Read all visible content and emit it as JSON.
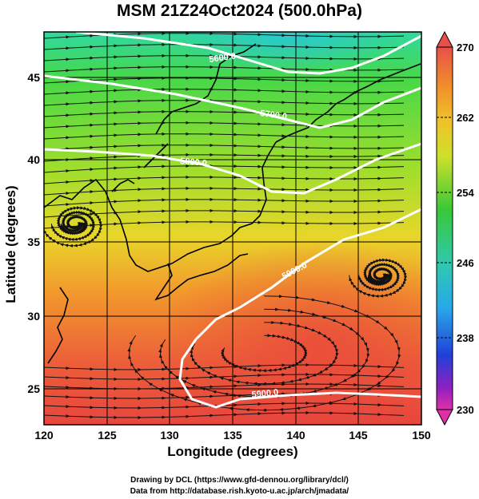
{
  "title": "MSM 21Z24Oct2024 (500.0hPa)",
  "axes": {
    "xlabel": "Longitude (degrees)",
    "ylabel": "Latitude  (degrees)",
    "xticks": [
      "120",
      "125",
      "130",
      "135",
      "140",
      "145",
      "150"
    ],
    "yticks": [
      "25",
      "30",
      "35",
      "40",
      "45"
    ]
  },
  "colorbar": {
    "ticks": [
      "270",
      "262",
      "254",
      "246",
      "238",
      "230"
    ],
    "colors": [
      "#e8504a",
      "#f08a2c",
      "#e8d02a",
      "#a6e02a",
      "#38c838",
      "#30c8b0",
      "#28a8e8",
      "#2040d8",
      "#9020c0",
      "#e030a8"
    ]
  },
  "contours": [
    "5600.0",
    "5700.0",
    "5800.0",
    "5900.0",
    "5900.0"
  ],
  "credits": {
    "line1": "Drawing by DCL (https://www.gfd-dennou.org/library/dcl/)",
    "line2": "Data from http://database.rish.kyoto-u.ac.jp/arch/jmadata/"
  },
  "chart_data": {
    "type": "map",
    "title": "MSM 21Z24Oct2024 (500.0hPa)",
    "xlabel": "Longitude (degrees)",
    "ylabel": "Latitude  (degrees)",
    "xlim": [
      120,
      150
    ],
    "ylim": [
      22.4,
      47.6
    ],
    "colorbar_range": [
      230,
      270
    ],
    "contour_levels": [
      5600,
      5700,
      5800,
      5900
    ],
    "vortex_centers": [
      [
        122.5,
        35.3
      ],
      [
        146.8,
        32.0
      ]
    ],
    "high_center": [
      137.5,
      27.0
    ]
  }
}
